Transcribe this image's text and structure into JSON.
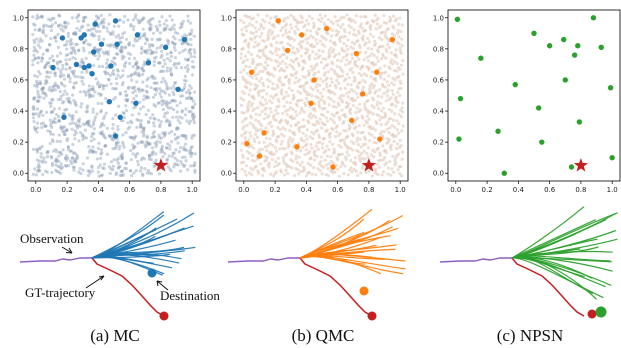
{
  "captions": [
    "(a) MC",
    "(b) QMC",
    "(c) NPSN"
  ],
  "annotations": {
    "observation": "Observation",
    "gt_trajectory": "GT-trajectory",
    "destination": "Destination"
  },
  "colors": {
    "mc": "#1f77b4",
    "mc_bg": "#8c9db5",
    "qmc": "#ff7f0e",
    "qmc_bg": "#d8b8a4",
    "npsn": "#2ca02c",
    "observed_path": "#8e5fc4",
    "gt_path": "#c41e1e",
    "star": "#c41e1e"
  },
  "chart_data": [
    {
      "type": "scatter",
      "panel": "(a) MC",
      "xlim": [
        -0.05,
        1.05
      ],
      "ylim": [
        -0.05,
        1.05
      ],
      "xticks": [
        "0.0",
        "0.2",
        "0.4",
        "0.6",
        "0.8",
        "1.0"
      ],
      "yticks": [
        "0.0",
        "0.2",
        "0.4",
        "0.6",
        "0.8",
        "1.0"
      ],
      "background_samples": "dense random cloud (~1500 points)",
      "star": [
        0.8,
        0.05
      ],
      "points": [
        [
          0.38,
          0.96
        ],
        [
          0.51,
          0.98
        ],
        [
          0.17,
          0.87
        ],
        [
          0.29,
          0.87
        ],
        [
          0.31,
          0.89
        ],
        [
          0.65,
          0.89
        ],
        [
          0.95,
          0.86
        ],
        [
          0.52,
          0.83
        ],
        [
          0.42,
          0.83
        ],
        [
          0.83,
          0.81
        ],
        [
          0.37,
          0.78
        ],
        [
          0.72,
          0.71
        ],
        [
          0.48,
          0.69
        ],
        [
          0.26,
          0.7
        ],
        [
          0.34,
          0.69
        ],
        [
          0.31,
          0.68
        ],
        [
          0.11,
          0.68
        ],
        [
          0.36,
          0.64
        ],
        [
          0.91,
          0.54
        ],
        [
          0.47,
          0.46
        ],
        [
          0.64,
          0.45
        ],
        [
          0.18,
          0.36
        ],
        [
          0.54,
          0.36
        ],
        [
          0.51,
          0.24
        ]
      ]
    },
    {
      "type": "scatter",
      "panel": "(b) QMC",
      "xlim": [
        -0.05,
        1.05
      ],
      "ylim": [
        -0.05,
        1.05
      ],
      "xticks": [
        "0.0",
        "0.2",
        "0.4",
        "0.6",
        "0.8",
        "1.0"
      ],
      "yticks": [
        "0.0",
        "0.2",
        "0.4",
        "0.6",
        "0.8",
        "1.0"
      ],
      "background_samples": "dense low-discrepancy cloud (~1500 points)",
      "star": [
        0.8,
        0.05
      ],
      "points": [
        [
          0.22,
          0.98
        ],
        [
          0.53,
          0.93
        ],
        [
          0.95,
          0.86
        ],
        [
          0.37,
          0.89
        ],
        [
          0.28,
          0.79
        ],
        [
          0.72,
          0.77
        ],
        [
          0.05,
          0.65
        ],
        [
          0.85,
          0.65
        ],
        [
          0.45,
          0.6
        ],
        [
          0.76,
          0.51
        ],
        [
          0.43,
          0.45
        ],
        [
          0.69,
          0.34
        ],
        [
          0.13,
          0.26
        ],
        [
          0.87,
          0.22
        ],
        [
          0.34,
          0.17
        ],
        [
          0.02,
          0.19
        ],
        [
          0.57,
          0.04
        ],
        [
          0.1,
          0.11
        ]
      ]
    },
    {
      "type": "scatter",
      "panel": "(c) NPSN",
      "xlim": [
        -0.05,
        1.05
      ],
      "ylim": [
        -0.05,
        1.05
      ],
      "xticks": [
        "0.0",
        "0.2",
        "0.4",
        "0.6",
        "0.8",
        "1.0"
      ],
      "yticks": [
        "0.0",
        "0.2",
        "0.4",
        "0.6",
        "0.8",
        "1.0"
      ],
      "star": [
        0.8,
        0.05
      ],
      "points": [
        [
          0.01,
          0.99
        ],
        [
          0.88,
          1.0
        ],
        [
          0.5,
          0.9
        ],
        [
          0.69,
          0.86
        ],
        [
          0.78,
          0.82
        ],
        [
          0.6,
          0.82
        ],
        [
          0.93,
          0.81
        ],
        [
          0.16,
          0.74
        ],
        [
          0.76,
          0.76
        ],
        [
          0.03,
          0.48
        ],
        [
          0.38,
          0.57
        ],
        [
          0.7,
          0.6
        ],
        [
          0.99,
          0.55
        ],
        [
          0.53,
          0.42
        ],
        [
          0.79,
          0.33
        ],
        [
          0.27,
          0.27
        ],
        [
          0.02,
          0.22
        ],
        [
          0.55,
          0.2
        ],
        [
          0.74,
          0.04
        ],
        [
          0.31,
          0.0
        ],
        [
          1.0,
          0.1
        ]
      ]
    }
  ]
}
